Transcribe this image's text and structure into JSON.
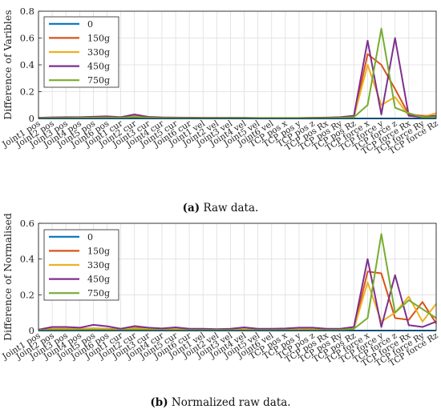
{
  "chart_data": [
    {
      "type": "line",
      "caption_label": "(a)",
      "caption_text": " Raw data.",
      "ylabel": "Difference of Varibles",
      "xlabel": "",
      "ylim": [
        0,
        0.8
      ],
      "yticks": [
        "0",
        "0.2",
        "0.4",
        "0.6",
        "0.8"
      ],
      "grid": true,
      "legend_position": "top-left",
      "categories": [
        "Joint1 pos",
        "Joint2 pos",
        "Joint3 pos",
        "Joint4 pos",
        "Joint5 pos",
        "Joint6 pos",
        "Joint1 cur",
        "Joint2 cur",
        "Joint3 cur",
        "Joint4 cur",
        "Joint5 cur",
        "Joint6 cur",
        "Joint1 vel",
        "Joint2 vel",
        "Joint3 vel",
        "Joint4 vel",
        "Joint5 vel",
        "Joint6 vel",
        "TCP pos x",
        "TCP pos y",
        "TCP pos z",
        "TCP pos Rx",
        "TCP pos Ry",
        "TCP pos Rz",
        "TCP force x",
        "TCP force y",
        "TCP force z",
        "TCP force Rx",
        "TCP force Ry",
        "TCP force Rz"
      ],
      "series": [
        {
          "name": "0",
          "color": "#0072bd",
          "values": [
            0,
            0,
            0,
            0,
            0,
            0,
            0,
            0,
            0,
            0,
            0,
            0,
            0,
            0,
            0,
            0,
            0,
            0,
            0,
            0,
            0,
            0,
            0,
            0,
            0,
            0,
            0,
            0,
            0,
            0
          ]
        },
        {
          "name": "150g",
          "color": "#d95319",
          "values": [
            0.003,
            0.006,
            0.006,
            0.006,
            0.008,
            0.009,
            0.007,
            0.018,
            0.008,
            0.006,
            0.006,
            0.005,
            0.004,
            0.004,
            0.003,
            0.003,
            0.003,
            0.003,
            0.003,
            0.003,
            0.004,
            0.005,
            0.007,
            0.01,
            0.48,
            0.4,
            0.22,
            0.03,
            0.02,
            0.02
          ]
        },
        {
          "name": "330g",
          "color": "#edb120",
          "values": [
            0.003,
            0.005,
            0.005,
            0.006,
            0.007,
            0.008,
            0.006,
            0.015,
            0.007,
            0.005,
            0.005,
            0.004,
            0.003,
            0.003,
            0.003,
            0.003,
            0.003,
            0.003,
            0.003,
            0.003,
            0.003,
            0.005,
            0.006,
            0.01,
            0.4,
            0.1,
            0.16,
            0.02,
            0.01,
            0.04
          ]
        },
        {
          "name": "450g",
          "color": "#7e2f8e",
          "values": [
            0.005,
            0.008,
            0.01,
            0.01,
            0.013,
            0.016,
            0.01,
            0.03,
            0.012,
            0.008,
            0.007,
            0.006,
            0.005,
            0.005,
            0.005,
            0.005,
            0.004,
            0.004,
            0.004,
            0.004,
            0.005,
            0.007,
            0.01,
            0.02,
            0.58,
            0.03,
            0.6,
            0.02,
            0.01,
            0.02
          ]
        },
        {
          "name": "750g",
          "color": "#77ac30",
          "values": [
            0.002,
            0.004,
            0.004,
            0.005,
            0.006,
            0.007,
            0.005,
            0.012,
            0.006,
            0.004,
            0.004,
            0.003,
            0.003,
            0.003,
            0.003,
            0.003,
            0.003,
            0.003,
            0.003,
            0.003,
            0.003,
            0.004,
            0.005,
            0.01,
            0.1,
            0.67,
            0.08,
            0.04,
            0.01,
            0.01
          ]
        }
      ]
    },
    {
      "type": "line",
      "caption_label": "(b)",
      "caption_text": " Normalized raw data.",
      "ylabel": "Difference of Normalised",
      "xlabel": "",
      "ylim": [
        0,
        0.6
      ],
      "yticks": [
        "0",
        "0.2",
        "0.4",
        "0.6"
      ],
      "grid": true,
      "legend_position": "top-left",
      "categories": [
        "Joint1 pos",
        "Joint2 pos",
        "Joint3 pos",
        "Joint4 pos",
        "Joint5 pos",
        "Joint6 pos",
        "Joint1 cur",
        "Joint2 cur",
        "Joint3 cur",
        "Joint4 cur",
        "Joint5 cur",
        "Joint6 cur",
        "Joint1 vel",
        "Joint2 vel",
        "Joint3 vel",
        "Joint4 vel",
        "Joint5 vel",
        "Joint6 vel",
        "TCP pos x",
        "TCP pos y",
        "TCP pos z",
        "TCP pos Rx",
        "TCP pos Ry",
        "TCP pos Rz",
        "TCP force x",
        "TCP force y",
        "TCP force z",
        "TCP force Rx",
        "TCP force Ry",
        "TCP force Rz"
      ],
      "series": [
        {
          "name": "0",
          "color": "#0072bd",
          "values": [
            0,
            0,
            0,
            0,
            0,
            0,
            0,
            0,
            0,
            0,
            0,
            0,
            0,
            0,
            0,
            0,
            0,
            0,
            0,
            0,
            0,
            0,
            0,
            0,
            0,
            0,
            0,
            0,
            0,
            0
          ]
        },
        {
          "name": "150g",
          "color": "#d95319",
          "values": [
            0.005,
            0.01,
            0.01,
            0.01,
            0.012,
            0.01,
            0.008,
            0.015,
            0.01,
            0.008,
            0.008,
            0.006,
            0.006,
            0.006,
            0.006,
            0.008,
            0.006,
            0.006,
            0.006,
            0.006,
            0.008,
            0.008,
            0.008,
            0.01,
            0.33,
            0.32,
            0.07,
            0.06,
            0.16,
            0.04
          ]
        },
        {
          "name": "330g",
          "color": "#edb120",
          "values": [
            0.004,
            0.008,
            0.008,
            0.008,
            0.01,
            0.008,
            0.006,
            0.012,
            0.008,
            0.006,
            0.006,
            0.005,
            0.005,
            0.005,
            0.005,
            0.006,
            0.005,
            0.005,
            0.005,
            0.005,
            0.006,
            0.006,
            0.006,
            0.01,
            0.27,
            0.05,
            0.1,
            0.19,
            0.05,
            0.15
          ]
        },
        {
          "name": "450g",
          "color": "#7e2f8e",
          "values": [
            0.005,
            0.02,
            0.02,
            0.016,
            0.032,
            0.024,
            0.01,
            0.025,
            0.016,
            0.012,
            0.018,
            0.01,
            0.01,
            0.008,
            0.01,
            0.018,
            0.01,
            0.01,
            0.012,
            0.016,
            0.016,
            0.01,
            0.01,
            0.02,
            0.4,
            0.02,
            0.31,
            0.03,
            0.02,
            0.05
          ]
        },
        {
          "name": "750g",
          "color": "#77ac30",
          "values": [
            0.002,
            0.004,
            0.004,
            0.004,
            0.005,
            0.004,
            0.003,
            0.006,
            0.004,
            0.003,
            0.003,
            0.003,
            0.003,
            0.003,
            0.003,
            0.003,
            0.003,
            0.003,
            0.003,
            0.003,
            0.003,
            0.003,
            0.004,
            0.01,
            0.07,
            0.54,
            0.1,
            0.17,
            0.12,
            0.07
          ]
        }
      ]
    }
  ]
}
